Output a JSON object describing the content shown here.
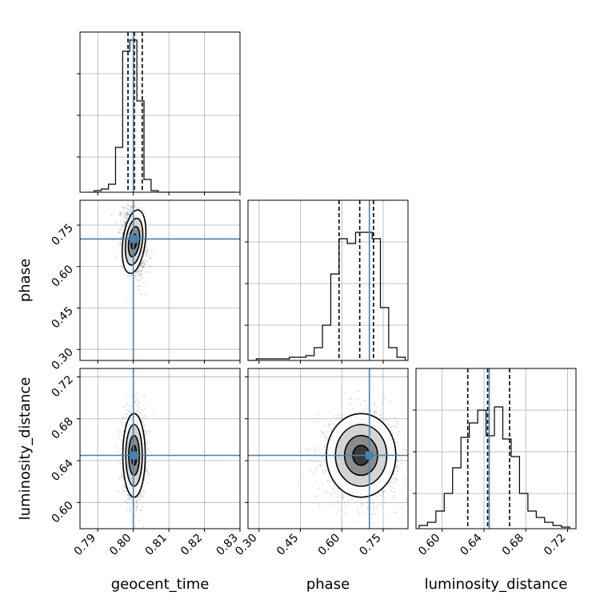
{
  "chart_data": {
    "type": "corner",
    "parameters": [
      {
        "name": "geocent_time",
        "label": "geocent_time",
        "range": [
          0.785,
          0.83
        ],
        "ticks": [
          0.79,
          0.8,
          0.81,
          0.82,
          0.83
        ],
        "tick_labels": [
          "0.79",
          "0.80",
          "0.81",
          "0.82",
          "0.83"
        ],
        "truth": 0.8
      },
      {
        "name": "phase",
        "label": "phase",
        "range": [
          0.26,
          0.84
        ],
        "ticks": [
          0.3,
          0.45,
          0.6,
          0.75
        ],
        "tick_labels": [
          "0.30",
          "0.45",
          "0.60",
          "0.75"
        ],
        "truth": 0.7
      },
      {
        "name": "luminosity_distance",
        "label": "luminosity_distance",
        "range": [
          0.575,
          0.728
        ],
        "ticks": [
          0.6,
          0.64,
          0.68,
          0.72
        ],
        "tick_labels": [
          "0.60",
          "0.64",
          "0.68",
          "0.72"
        ],
        "truth": 0.645
      }
    ],
    "histograms": [
      {
        "param": "geocent_time",
        "quantiles": [
          0.7985,
          0.8003,
          0.8025
        ],
        "bin_edges": [
          0.787,
          0.789,
          0.791,
          0.793,
          0.795,
          0.797,
          0.799,
          0.801,
          0.803,
          0.805,
          0.807,
          0.809,
          0.811,
          0.813,
          0.815,
          0.817,
          0.819,
          0.821,
          0.823,
          0.825,
          0.827,
          0.829
        ],
        "counts": [
          0.0,
          0.01,
          0.02,
          0.05,
          0.28,
          0.88,
          0.95,
          0.57,
          0.08,
          0.01,
          0.0,
          0.0,
          0.0,
          0.0,
          0.0,
          0.0,
          0.0,
          0.0,
          0.0,
          0.0,
          0.0
        ]
      },
      {
        "param": "phase",
        "quantiles": [
          0.59,
          0.665,
          0.715
        ],
        "bin_edges": [
          0.26,
          0.29,
          0.32,
          0.35,
          0.38,
          0.41,
          0.44,
          0.47,
          0.5,
          0.53,
          0.56,
          0.59,
          0.62,
          0.65,
          0.68,
          0.71,
          0.74,
          0.77,
          0.8,
          0.83
        ],
        "counts": [
          0.0,
          0.01,
          0.01,
          0.01,
          0.01,
          0.02,
          0.02,
          0.03,
          0.08,
          0.22,
          0.54,
          0.76,
          0.73,
          0.8,
          0.8,
          0.76,
          0.33,
          0.08,
          0.02
        ]
      },
      {
        "param": "luminosity_distance",
        "quantiles": [
          0.6245,
          0.6435,
          0.6645
        ],
        "bin_edges": [
          0.578,
          0.586,
          0.594,
          0.602,
          0.61,
          0.618,
          0.626,
          0.634,
          0.642,
          0.65,
          0.658,
          0.666,
          0.674,
          0.682,
          0.69,
          0.698,
          0.706,
          0.714,
          0.722
        ],
        "counts": [
          0.02,
          0.04,
          0.11,
          0.22,
          0.38,
          0.57,
          0.66,
          0.74,
          0.58,
          0.76,
          0.56,
          0.45,
          0.22,
          0.11,
          0.07,
          0.04,
          0.02,
          0.01
        ]
      }
    ],
    "scatter2d": [
      {
        "x": "geocent_time",
        "y": "phase",
        "center": [
          0.8002,
          0.69
        ],
        "sd": [
          0.0015,
          0.055
        ],
        "rho": -0.3
      },
      {
        "x": "geocent_time",
        "y": "luminosity_distance",
        "center": [
          0.8002,
          0.645
        ],
        "sd": [
          0.0015,
          0.019
        ],
        "rho": 0.0
      },
      {
        "x": "phase",
        "y": "luminosity_distance",
        "center": [
          0.67,
          0.645
        ],
        "sd": [
          0.06,
          0.019
        ],
        "rho": 0.0
      }
    ],
    "truth_color": "#4682b4",
    "grid": true
  }
}
